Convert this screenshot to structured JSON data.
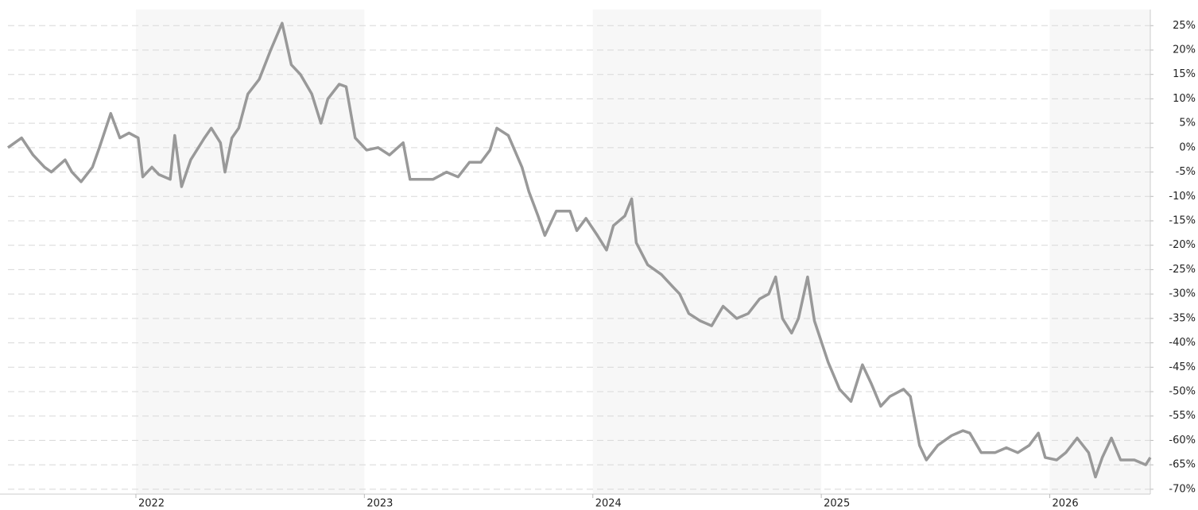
{
  "chart_data": {
    "type": "line",
    "color": "#999999",
    "grid": true,
    "x": [
      2021.44,
      2021.5,
      2021.55,
      2021.6,
      2021.63,
      2021.69,
      2021.72,
      2021.76,
      2021.81,
      2021.84,
      2021.89,
      2021.93,
      2021.97,
      2022.01,
      2022.03,
      2022.07,
      2022.1,
      2022.15,
      2022.17,
      2022.2,
      2022.24,
      2022.3,
      2022.33,
      2022.37,
      2022.39,
      2022.42,
      2022.45,
      2022.49,
      2022.54,
      2022.59,
      2022.64,
      2022.68,
      2022.72,
      2022.77,
      2022.81,
      2022.84,
      2022.89,
      2022.92,
      2022.96,
      2023.01,
      2023.06,
      2023.11,
      2023.17,
      2023.2,
      2023.25,
      2023.3,
      2023.36,
      2023.41,
      2023.46,
      2023.51,
      2023.55,
      2023.58,
      2023.63,
      2023.69,
      2023.72,
      2023.76,
      2023.79,
      2023.84,
      2023.9,
      2023.93,
      2023.97,
      2024.02,
      2024.06,
      2024.09,
      2024.14,
      2024.17,
      2024.19,
      2024.24,
      2024.3,
      2024.35,
      2024.38,
      2024.42,
      2024.47,
      2024.52,
      2024.57,
      2024.63,
      2024.68,
      2024.73,
      2024.77,
      2024.8,
      2024.83,
      2024.87,
      2024.9,
      2024.94,
      2024.97,
      2025.03,
      2025.08,
      2025.13,
      2025.18,
      2025.22,
      2025.26,
      2025.3,
      2025.36,
      2025.39,
      2025.43,
      2025.46,
      2025.51,
      2025.57,
      2025.62,
      2025.65,
      2025.7,
      2025.76,
      2025.81,
      2025.86,
      2025.91,
      2025.95,
      2025.98,
      2026.03,
      2026.07,
      2026.12,
      2026.17,
      2026.2,
      2026.23,
      2026.27,
      2026.31,
      2026.37,
      2026.42,
      2026.44
    ],
    "values": [
      0,
      2,
      -1.5,
      -4,
      -5,
      -2.5,
      -5,
      -7,
      -4,
      0,
      7,
      2,
      3,
      2,
      -6,
      -4,
      -5.5,
      -6.5,
      2.5,
      -8,
      -2.5,
      2,
      4,
      1,
      -5,
      2,
      4,
      11,
      14,
      20,
      25.5,
      17,
      15,
      11,
      5,
      10,
      13,
      12.5,
      2,
      -0.5,
      0,
      -1.5,
      1,
      -6.5,
      -6.5,
      -6.5,
      -5,
      -6,
      -3,
      -3,
      -0.5,
      4,
      2.5,
      -4,
      -9,
      -14,
      -18,
      -13,
      -13,
      -17,
      -14.5,
      -18,
      -21,
      -16,
      -14,
      -10.5,
      -19.5,
      -24,
      -26,
      -28.5,
      -30,
      -34,
      -35.5,
      -36.5,
      -32.5,
      -35,
      -34,
      -31,
      -30,
      -26.5,
      -35,
      -38,
      -35,
      -26.5,
      -35.5,
      -44,
      -49.5,
      -52,
      -44.5,
      -48.5,
      -53,
      -51,
      -49.5,
      -51,
      -61,
      -64,
      -61,
      -59,
      -58,
      -58.5,
      -62.5,
      -62.5,
      -61.5,
      -62.5,
      -61,
      -58.5,
      -63.5,
      -64,
      -62.5,
      -59.5,
      -62.5,
      -67.5,
      -63.5,
      -59.5,
      -64,
      -64,
      -65,
      -63.5
    ],
    "xlim": [
      2021.44,
      2026.44
    ],
    "xticks": [
      2022,
      2023,
      2024,
      2025,
      2026
    ],
    "ylim": [
      -71,
      28.3
    ],
    "yticks": [
      {
        "value": 25,
        "label": "25%"
      },
      {
        "value": 20,
        "label": "20%"
      },
      {
        "value": 15,
        "label": "15%"
      },
      {
        "value": 10,
        "label": "10%"
      },
      {
        "value": 5,
        "label": "5%"
      },
      {
        "value": 0,
        "label": "0%"
      },
      {
        "value": -5,
        "label": "-5%"
      },
      {
        "value": -10,
        "label": "-10%"
      },
      {
        "value": -15,
        "label": "-15%"
      },
      {
        "value": -20,
        "label": "-20%"
      },
      {
        "value": -25,
        "label": "-25%"
      },
      {
        "value": -30,
        "label": "-30%"
      },
      {
        "value": -35,
        "label": "-35%"
      },
      {
        "value": -40,
        "label": "-40%"
      },
      {
        "value": -45,
        "label": "-45%"
      },
      {
        "value": -50,
        "label": "-50%"
      },
      {
        "value": -55,
        "label": "-55%"
      },
      {
        "value": -60,
        "label": "-60%"
      },
      {
        "value": -65,
        "label": "-65%"
      },
      {
        "value": -70,
        "label": "-70%"
      }
    ]
  }
}
